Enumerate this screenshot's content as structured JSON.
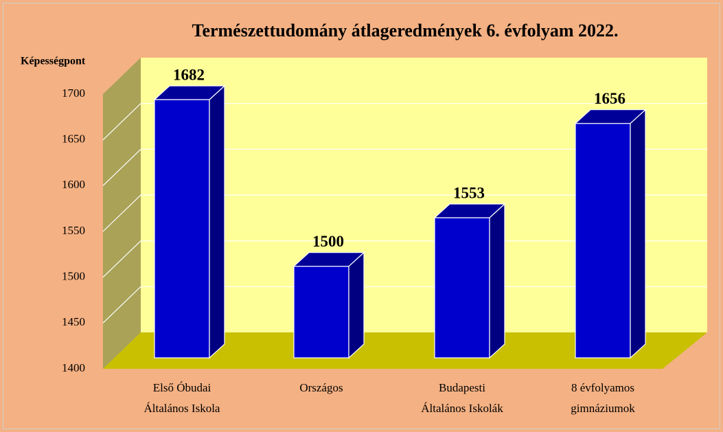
{
  "chart_data": {
    "type": "bar3d",
    "title": "Természettudomány átlageredmények 6. évfolyam 2022.",
    "ylabel": "Képességpont",
    "categories": [
      [
        "Első Óbudai",
        "Általános Iskola"
      ],
      [
        "Országos"
      ],
      [
        "Budapesti",
        "Általános Iskolák"
      ],
      [
        "8 évfolyamos",
        "gimnáziumok"
      ]
    ],
    "values": [
      1682,
      1500,
      1553,
      1656
    ],
    "color": "#0000cc",
    "ylim": [
      1400,
      1700
    ],
    "yticks": [
      1400,
      1450,
      1500,
      1550,
      1600,
      1650,
      1700
    ],
    "grid": true
  }
}
